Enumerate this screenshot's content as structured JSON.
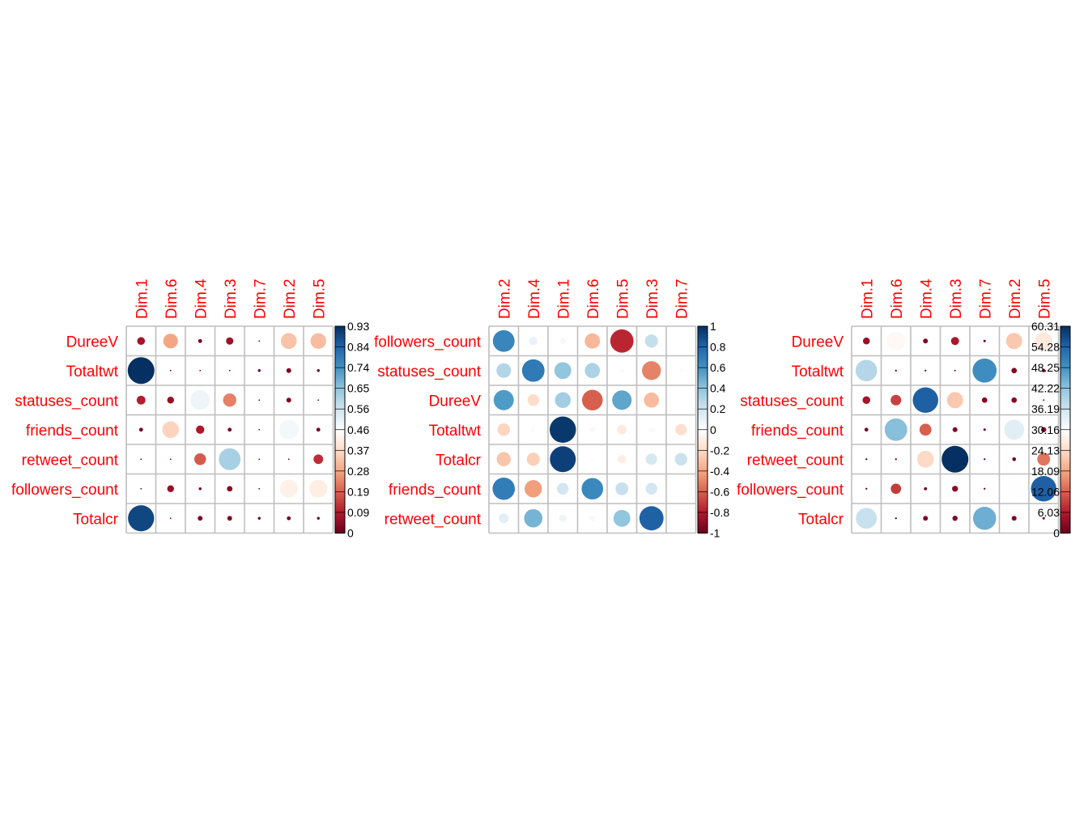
{
  "chart_data": [
    {
      "type": "heatmap",
      "mark": "circle",
      "rows": [
        "DureeV",
        "Totaltwt",
        "statuses_count",
        "friends_count",
        "retweet_count",
        "followers_count",
        "Totalcr"
      ],
      "cols": [
        "Dim.1",
        "Dim.6",
        "Dim.4",
        "Dim.3",
        "Dim.7",
        "Dim.2",
        "Dim.5"
      ],
      "values": [
        [
          0.08,
          0.28,
          0.02,
          0.07,
          0.0,
          0.33,
          0.32
        ],
        [
          0.93,
          0.0,
          0.0,
          0.0,
          0.01,
          0.03,
          0.01
        ],
        [
          0.1,
          0.06,
          0.5,
          0.23,
          0.0,
          0.03,
          0.0
        ],
        [
          0.02,
          0.36,
          0.09,
          0.02,
          0.0,
          0.49,
          0.02
        ],
        [
          0.0,
          0.0,
          0.18,
          0.62,
          0.0,
          0.0,
          0.12
        ],
        [
          0.0,
          0.06,
          0.01,
          0.04,
          0.0,
          0.43,
          0.42
        ],
        [
          0.89,
          0.0,
          0.03,
          0.03,
          0.01,
          0.02,
          0.01
        ]
      ],
      "colorbar": {
        "min": 0,
        "max": 0.93,
        "tick_labels": [
          "0",
          "0.09",
          "0.19",
          "0.28",
          "0.37",
          "0.46",
          "0.56",
          "0.65",
          "0.74",
          "0.84",
          "0.93"
        ]
      }
    },
    {
      "type": "heatmap",
      "mark": "circle",
      "rows": [
        "followers_count",
        "statuses_count",
        "DureeV",
        "Totaltwt",
        "Totalcr",
        "friends_count",
        "retweet_count"
      ],
      "cols": [
        "Dim.2",
        "Dim.4",
        "Dim.1",
        "Dim.6",
        "Dim.5",
        "Dim.3",
        "Dim.7"
      ],
      "values": [
        [
          0.66,
          0.1,
          0.05,
          -0.33,
          -0.76,
          0.24,
          0.0
        ],
        [
          0.3,
          0.71,
          0.4,
          0.32,
          -0.03,
          -0.5,
          0.02
        ],
        [
          0.57,
          -0.19,
          0.35,
          -0.6,
          0.53,
          -0.32,
          0.0
        ],
        [
          -0.22,
          0.02,
          0.97,
          0.04,
          -0.12,
          -0.04,
          -0.18
        ],
        [
          -0.28,
          -0.24,
          0.94,
          0.02,
          -0.1,
          0.18,
          0.22
        ],
        [
          0.7,
          -0.42,
          0.19,
          0.65,
          0.23,
          0.19,
          0.0
        ],
        [
          0.13,
          0.47,
          0.08,
          0.05,
          0.4,
          0.82,
          0.0
        ]
      ],
      "colorbar": {
        "min": -1,
        "max": 1,
        "tick_labels": [
          "-1",
          "-0.8",
          "-0.6",
          "-0.4",
          "-0.2",
          "0",
          "0.2",
          "0.4",
          "0.6",
          "0.8",
          "1"
        ]
      }
    },
    {
      "type": "heatmap",
      "mark": "circle",
      "rows": [
        "DureeV",
        "Totaltwt",
        "statuses_count",
        "friends_count",
        "retweet_count",
        "followers_count",
        "Totalcr"
      ],
      "cols": [
        "Dim.1",
        "Dim.6",
        "Dim.4",
        "Dim.3",
        "Dim.7",
        "Dim.2",
        "Dim.5"
      ],
      "values": [
        [
          4.0,
          29.0,
          2.0,
          5.5,
          0.5,
          22.0,
          26.5
        ],
        [
          39.0,
          0.3,
          0.3,
          0.2,
          49.0,
          2.5,
          1.0
        ],
        [
          5.0,
          9.5,
          55.0,
          22.0,
          2.5,
          2.5,
          0.2
        ],
        [
          1.2,
          43.0,
          12.0,
          2.0,
          0.5,
          34.0,
          2.3
        ],
        [
          0.3,
          0.3,
          24.0,
          60.3,
          0.3,
          1.2,
          14.0
        ],
        [
          0.3,
          9.0,
          0.8,
          3.0,
          0.3,
          30.3,
          55.0
        ],
        [
          37.0,
          0.3,
          2.0,
          2.3,
          45.0,
          2.0,
          0.5
        ]
      ],
      "colorbar": {
        "min": 0,
        "max": 60.31,
        "tick_labels": [
          "0",
          "6.03",
          "12.06",
          "18.09",
          "24.13",
          "30.16",
          "36.19",
          "42.22",
          "48.25",
          "54.28",
          "60.31"
        ]
      }
    }
  ],
  "colors": {
    "palette": [
      "#67001F",
      "#B2182B",
      "#D6604D",
      "#F4A582",
      "#FDDBC7",
      "#FFFFFF",
      "#D1E5F0",
      "#92C5DE",
      "#4393C3",
      "#2166AC",
      "#053061"
    ],
    "label": "#ff0000",
    "grid": "#bebebe"
  }
}
